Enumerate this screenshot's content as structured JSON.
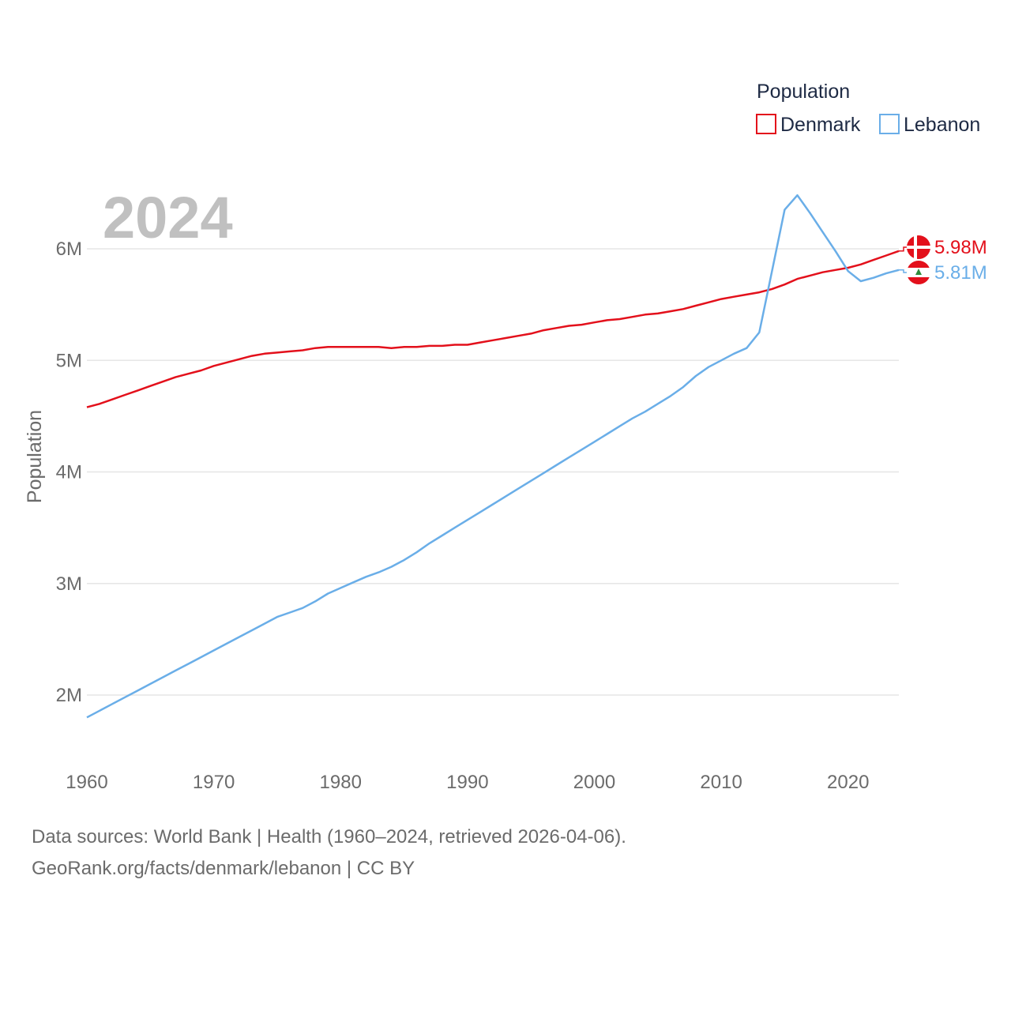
{
  "chart_data": {
    "type": "line",
    "ylabel": "Population",
    "xlabel": "",
    "year_label": "2024",
    "legend_title": "Population",
    "legend_position": "top-right",
    "x_ticks": [
      1960,
      1970,
      1980,
      1990,
      2000,
      2010,
      2020
    ],
    "y_ticks": [
      {
        "value": 2000000,
        "label": "2M"
      },
      {
        "value": 3000000,
        "label": "3M"
      },
      {
        "value": 4000000,
        "label": "4M"
      },
      {
        "value": 5000000,
        "label": "5M"
      },
      {
        "value": 6000000,
        "label": "6M"
      }
    ],
    "xlim": [
      1960,
      2024
    ],
    "ylim": [
      1500000,
      6800000
    ],
    "x": [
      1960,
      1961,
      1962,
      1963,
      1964,
      1965,
      1966,
      1967,
      1968,
      1969,
      1970,
      1971,
      1972,
      1973,
      1974,
      1975,
      1976,
      1977,
      1978,
      1979,
      1980,
      1981,
      1982,
      1983,
      1984,
      1985,
      1986,
      1987,
      1988,
      1989,
      1990,
      1991,
      1992,
      1993,
      1994,
      1995,
      1996,
      1997,
      1998,
      1999,
      2000,
      2001,
      2002,
      2003,
      2004,
      2005,
      2006,
      2007,
      2008,
      2009,
      2010,
      2011,
      2012,
      2013,
      2014,
      2015,
      2016,
      2017,
      2018,
      2019,
      2020,
      2021,
      2022,
      2023,
      2024
    ],
    "series": [
      {
        "name": "Denmark",
        "color": "#e3101b",
        "end_label": "5.98M",
        "flag": "denmark-flag",
        "values": [
          4580000,
          4610000,
          4650000,
          4690000,
          4730000,
          4770000,
          4810000,
          4850000,
          4880000,
          4910000,
          4950000,
          4980000,
          5010000,
          5040000,
          5060000,
          5070000,
          5080000,
          5090000,
          5110000,
          5120000,
          5120000,
          5120000,
          5120000,
          5120000,
          5110000,
          5120000,
          5120000,
          5130000,
          5130000,
          5140000,
          5140000,
          5160000,
          5180000,
          5200000,
          5220000,
          5240000,
          5270000,
          5290000,
          5310000,
          5320000,
          5340000,
          5360000,
          5370000,
          5390000,
          5410000,
          5420000,
          5440000,
          5460000,
          5490000,
          5520000,
          5550000,
          5570000,
          5590000,
          5610000,
          5640000,
          5680000,
          5730000,
          5760000,
          5790000,
          5810000,
          5830000,
          5860000,
          5900000,
          5940000,
          5980000
        ]
      },
      {
        "name": "Lebanon",
        "color": "#6aaee8",
        "end_label": "5.81M",
        "flag": "lebanon-flag",
        "values": [
          1800000,
          1860000,
          1920000,
          1980000,
          2040000,
          2100000,
          2160000,
          2220000,
          2280000,
          2340000,
          2400000,
          2460000,
          2520000,
          2580000,
          2640000,
          2700000,
          2740000,
          2780000,
          2840000,
          2910000,
          2960000,
          3010000,
          3060000,
          3100000,
          3150000,
          3210000,
          3280000,
          3360000,
          3430000,
          3500000,
          3570000,
          3640000,
          3710000,
          3780000,
          3850000,
          3920000,
          3990000,
          4060000,
          4130000,
          4200000,
          4270000,
          4340000,
          4410000,
          4480000,
          4540000,
          4610000,
          4680000,
          4760000,
          4860000,
          4940000,
          5000000,
          5060000,
          5110000,
          5250000,
          5800000,
          6350000,
          6480000,
          6320000,
          6150000,
          5980000,
          5800000,
          5710000,
          5740000,
          5780000,
          5810000
        ]
      }
    ]
  },
  "footer": {
    "line1": "Data sources: World Bank | Health (1960–2024, retrieved 2026-04-06).",
    "line2": "GeoRank.org/facts/denmark/lebanon | CC BY"
  }
}
